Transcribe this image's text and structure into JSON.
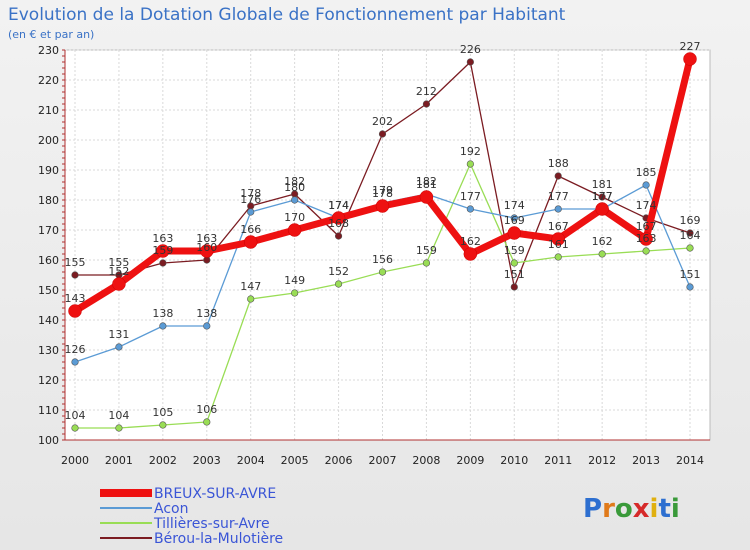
{
  "chart_data": {
    "type": "line",
    "title": "Evolution de la Dotation Globale de Fonctionnement par Habitant",
    "subtitle": "(en € et par an)",
    "xlabel": "",
    "ylabel": "",
    "ylim": [
      100,
      230
    ],
    "yticks": [
      100,
      110,
      120,
      130,
      140,
      150,
      160,
      170,
      180,
      190,
      200,
      210,
      220,
      230
    ],
    "categories": [
      "2000",
      "2001",
      "2002",
      "2003",
      "2004",
      "2005",
      "2006",
      "2007",
      "2008",
      "2009",
      "2010",
      "2011",
      "2012",
      "2013",
      "2014"
    ],
    "grid": true,
    "legend_position": "bottom-left",
    "series": [
      {
        "name": "Bérou-la-Mulotière",
        "color": "#7b1c22",
        "values": [
          155,
          155,
          159,
          160,
          178,
          182,
          168,
          202,
          212,
          226,
          151,
          188,
          181,
          174,
          169
        ]
      },
      {
        "name": "Tillières-sur-Avre",
        "color": "#99dd55",
        "values": [
          104,
          104,
          105,
          106,
          147,
          149,
          152,
          156,
          159,
          192,
          159,
          161,
          162,
          163,
          164
        ]
      },
      {
        "name": "Acon",
        "color": "#5b9bd5",
        "values": [
          126,
          131,
          138,
          138,
          176,
          180,
          174,
          179,
          182,
          177,
          174,
          177,
          177,
          185,
          151
        ]
      },
      {
        "name": "BREUX-SUR-AVRE",
        "color": "#ee1111",
        "values": [
          143,
          152,
          163,
          163,
          166,
          170,
          174,
          178,
          181,
          162,
          169,
          167,
          177,
          167,
          227
        ]
      }
    ],
    "labels": {
      "Bérou-la-Mulotière": [
        "155",
        "155",
        "159",
        "160",
        "178",
        "182",
        "168",
        "202",
        "212",
        "226",
        "151",
        "188",
        "181",
        "174",
        "169"
      ],
      "Tillières-sur-Avre": [
        "104",
        "104",
        "105",
        "106",
        "147",
        "149",
        "152",
        "156",
        "159",
        "192",
        "159",
        "161",
        "162",
        "163",
        "164"
      ],
      "Acon": [
        "126",
        "131",
        "138",
        "138",
        "176",
        "180",
        "174",
        "179",
        "182",
        "177",
        "174",
        "177",
        "177",
        "185",
        "151"
      ],
      "BREUX-SUR-AVRE": [
        "143",
        "152",
        "163",
        "163",
        "166",
        "170",
        "174",
        "178",
        "181",
        "162",
        "169",
        "167",
        "177",
        "167",
        "227"
      ]
    }
  },
  "legend": {
    "items": [
      {
        "label": "BREUX-SUR-AVRE",
        "color": "#ee1111"
      },
      {
        "label": "Acon",
        "color": "#5b9bd5"
      },
      {
        "label": "Tillières-sur-Avre",
        "color": "#99dd55"
      },
      {
        "label": "Bérou-la-Mulotière",
        "color": "#7b1c22"
      }
    ]
  },
  "logo": {
    "text": "Proxiti"
  }
}
